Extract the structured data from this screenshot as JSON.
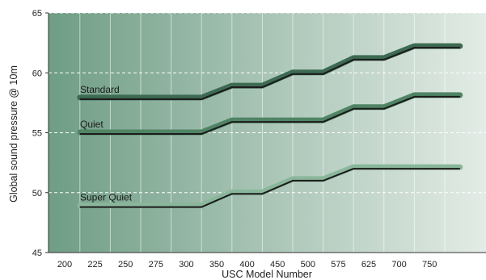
{
  "chart_data": {
    "type": "line",
    "title": "",
    "xlabel": "USC Model Number",
    "ylabel": "Global sound pressure @ 10m",
    "categories": [
      "200",
      "225",
      "250",
      "275",
      "300",
      "350",
      "400",
      "450",
      "500",
      "575",
      "625",
      "700",
      "750"
    ],
    "ylim": [
      45,
      65
    ],
    "yticks": [
      45,
      50,
      55,
      60,
      65
    ],
    "grid": true,
    "series": [
      {
        "name": "Standard",
        "values": [
          null,
          57.8,
          57.8,
          57.8,
          57.8,
          57.8,
          58.8,
          58.8,
          59.9,
          59.9,
          61.1,
          61.1,
          62.1,
          62.1
        ],
        "x": [
          200,
          212,
          225,
          250,
          275,
          312,
          362,
          412,
          462,
          512,
          562,
          612,
          662,
          712
        ],
        "points": [
          [
            0.5,
            57.8
          ],
          [
            4.5,
            57.8
          ],
          [
            5.5,
            58.8
          ],
          [
            6.5,
            58.8
          ],
          [
            7.5,
            59.9
          ],
          [
            8.5,
            59.9
          ],
          [
            9.5,
            61.1
          ],
          [
            10.5,
            61.1
          ],
          [
            11.5,
            62.1
          ],
          [
            13,
            62.1
          ]
        ],
        "color": "#3d6a52"
      },
      {
        "name": "Quiet",
        "points": [
          [
            0.5,
            54.9
          ],
          [
            4.5,
            54.9
          ],
          [
            5.5,
            55.9
          ],
          [
            6.5,
            55.9
          ],
          [
            7.5,
            55.9
          ],
          [
            8.5,
            55.9
          ],
          [
            9.5,
            57.0
          ],
          [
            10.5,
            57.0
          ],
          [
            11.5,
            58.0
          ],
          [
            13,
            58.0
          ]
        ],
        "color": "#4f8464"
      },
      {
        "name": "Super Quiet",
        "points": [
          [
            0.5,
            48.8
          ],
          [
            4.5,
            48.8
          ],
          [
            5.5,
            49.9
          ],
          [
            6.5,
            49.9
          ],
          [
            7.5,
            51.0
          ],
          [
            8.5,
            51.0
          ],
          [
            9.5,
            52.0
          ],
          [
            10.5,
            52.0
          ],
          [
            13,
            52.0
          ]
        ],
        "color": "#8ab79b"
      }
    ],
    "background_gradient": [
      "#6f9d85",
      "#e3ece6"
    ]
  }
}
